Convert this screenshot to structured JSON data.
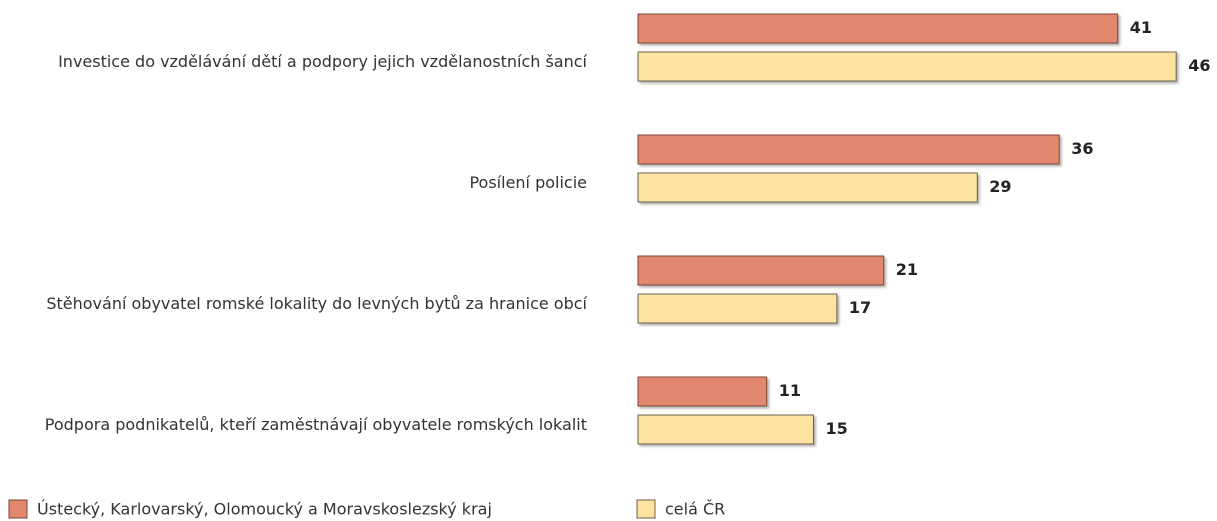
{
  "chart_data": {
    "type": "barh",
    "categories": [
      "Investice do vzdělávání dětí a podpory jejich vzdělanostních šancí",
      "Posílení policie",
      "Stěhování obyvatel romské lokality do levných bytů za hranice obcí",
      "Podpora podnikatelů, kteří zaměstnávají obyvatele romských lokalit"
    ],
    "series": [
      {
        "name": "Ústecký, Karlovarský, Olomoucký a Moravskoslezský kraj",
        "color": "#e0876e",
        "values": [
          41,
          36,
          21,
          11
        ]
      },
      {
        "name": "celá ČR",
        "color": "#fee2a0",
        "values": [
          46,
          29,
          17,
          15
        ]
      }
    ]
  }
}
